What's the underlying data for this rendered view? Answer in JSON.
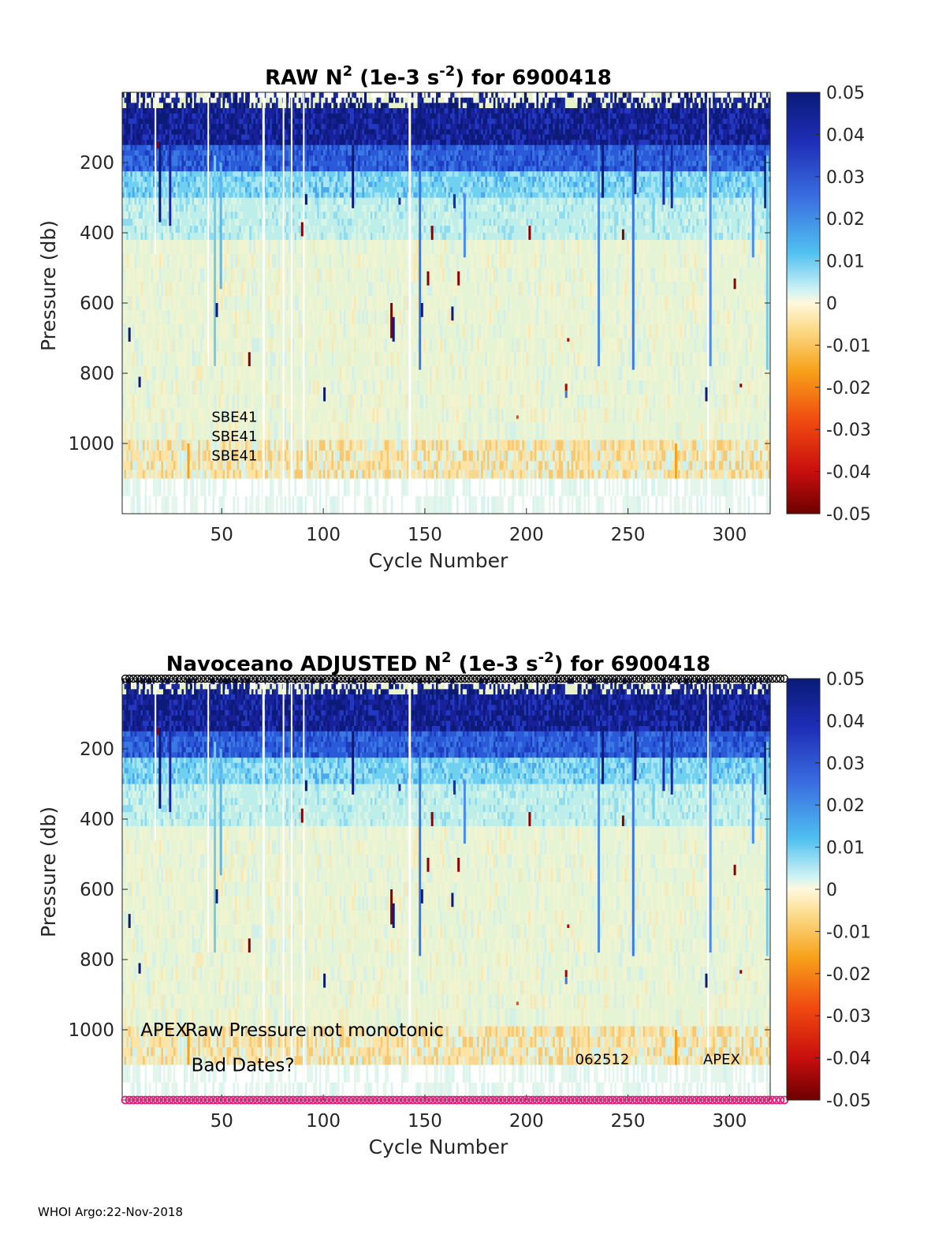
{
  "chart_data": [
    {
      "type": "heatmap",
      "title_prefix": "RAW N",
      "title_sup": "2",
      "title_mid": " (1e-3 s",
      "title_sup2": "-2",
      "title_suffix": ") for 6900418",
      "xlabel": "Cycle Number",
      "ylabel": "Pressure (db)",
      "xlim": [
        1,
        320
      ],
      "ylim": [
        1200,
        0
      ],
      "xticks": [
        "50",
        "100",
        "150",
        "200",
        "250",
        "300"
      ],
      "yticks": [
        "200",
        "400",
        "600",
        "800",
        "1000"
      ],
      "colorbar": {
        "range": [
          -0.05,
          0.05
        ],
        "ticks": [
          "0.05",
          "0.04",
          "0.03",
          "0.02",
          "0.01",
          "0",
          "-0.01",
          "-0.02",
          "-0.03",
          "-0.04",
          "-0.05"
        ]
      },
      "annotations": [
        {
          "text": "SBE41",
          "x": 45,
          "p": 920
        },
        {
          "text": "SBE41",
          "x": 45,
          "p": 975
        },
        {
          "text": "SBE41",
          "x": 45,
          "p": 1030
        }
      ]
    },
    {
      "type": "heatmap",
      "title_prefix": "Navoceano  ADJUSTED N",
      "title_sup": "2",
      "title_mid": " (1e-3 s",
      "title_sup2": "-2",
      "title_suffix": ") for 6900418",
      "xlabel": "Cycle Number",
      "ylabel": "Pressure (db)",
      "xlim": [
        1,
        320
      ],
      "ylim": [
        1200,
        0
      ],
      "xticks": [
        "50",
        "100",
        "150",
        "200",
        "250",
        "300"
      ],
      "yticks": [
        "200",
        "400",
        "600",
        "800",
        "1000"
      ],
      "colorbar": {
        "range": [
          -0.05,
          0.05
        ],
        "ticks": [
          "0.05",
          "0.04",
          "0.03",
          "0.02",
          "0.01",
          "0",
          "-0.01",
          "-0.02",
          "-0.03",
          "-0.04",
          "-0.05"
        ]
      },
      "annotations": [
        {
          "text": "APEX",
          "x": 10,
          "p": 1000
        },
        {
          "text": "Raw Pressure not monotonic",
          "x": 32,
          "p": 1000
        },
        {
          "text": "Bad Dates?",
          "x": 35,
          "p": 1100
        },
        {
          "text": "062512",
          "x": 224,
          "p": 1080
        },
        {
          "text": "APEX",
          "x": 287,
          "p": 1080
        }
      ],
      "marker_rows": {
        "top_color": "#000000",
        "bottom_color": "#e0207a"
      }
    }
  ],
  "footer": {
    "text": "WHOI Argo:22-Nov-2018"
  }
}
